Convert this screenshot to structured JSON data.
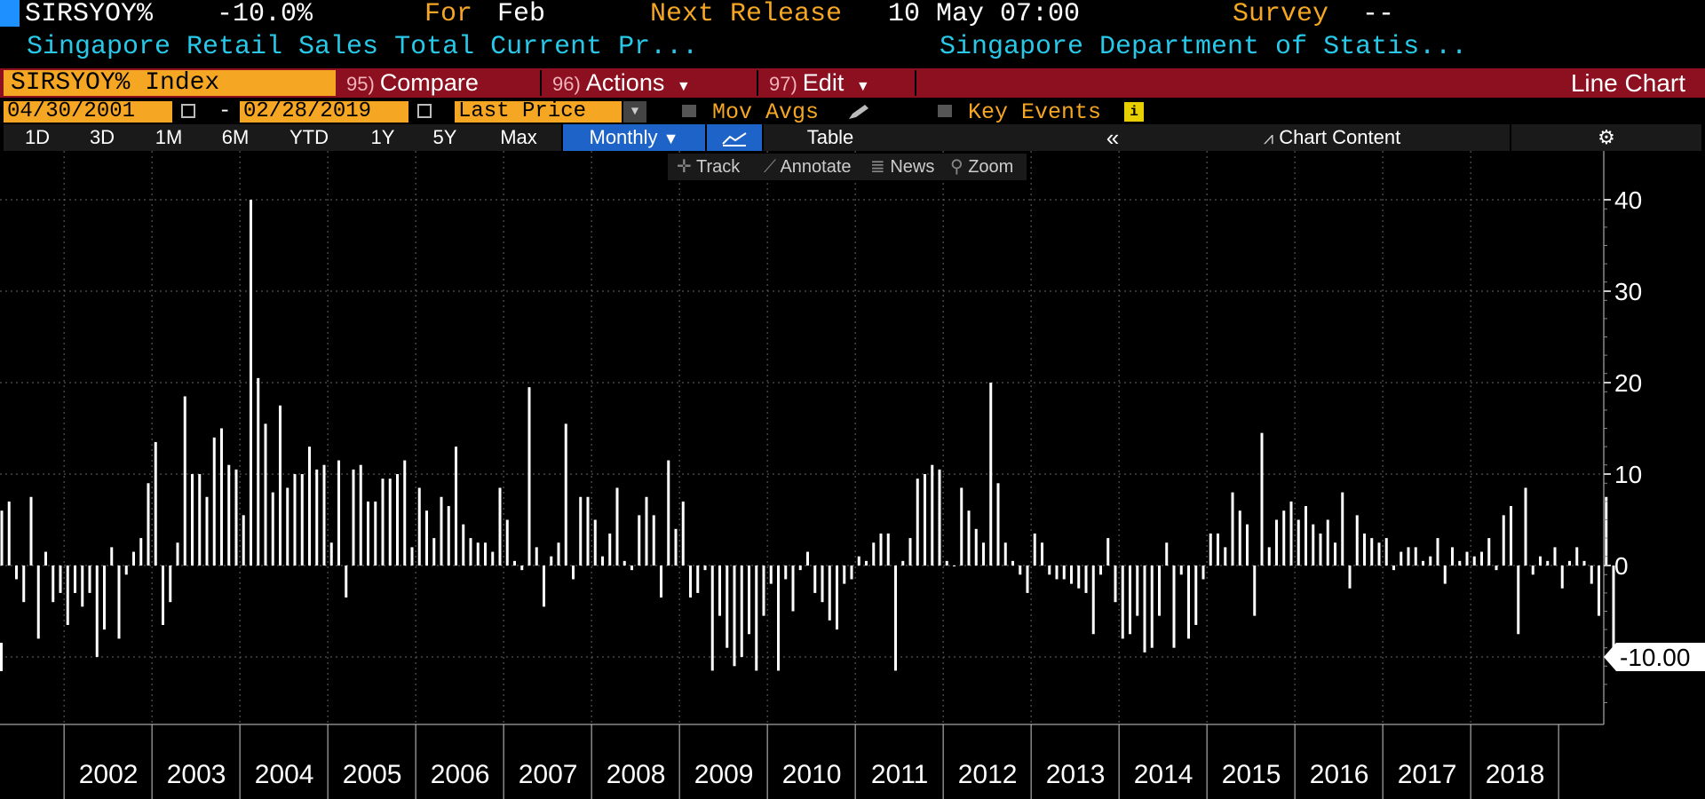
{
  "header": {
    "ticker": "SIRSYOY%",
    "last_value": "-10.0%",
    "for_label": "For",
    "for_value": "Feb",
    "next_release_label": "Next Release",
    "next_release_value": "10 May 07:00",
    "survey_label": "Survey",
    "survey_value": "--",
    "description": "Singapore Retail Sales Total Current Pr...",
    "source": "Singapore Department of Statis..."
  },
  "toolbar": {
    "security": "SIRSYOY% Index",
    "compare_num": "95)",
    "compare_label": "Compare",
    "actions_num": "96)",
    "actions_label": "Actions",
    "edit_num": "97)",
    "edit_label": "Edit",
    "chart_type": "Line Chart"
  },
  "settings": {
    "start_date": "04/30/2001",
    "date_sep": "-",
    "end_date": "02/28/2019",
    "field": "Last Price",
    "mov_avgs": "Mov Avgs",
    "key_events": "Key Events"
  },
  "ranges": {
    "items": [
      "1D",
      "3D",
      "1M",
      "6M",
      "YTD",
      "1Y",
      "5Y",
      "Max"
    ],
    "period": "Monthly",
    "table": "Table",
    "chart_content": "Chart Content"
  },
  "tools": {
    "track": "Track",
    "annotate": "Annotate",
    "news": "News",
    "zoom": "Zoom"
  },
  "colors": {
    "accent_orange": "#f5a623",
    "toolbar_red": "#8c1020",
    "text_cyan": "#27c8e8",
    "active_blue": "#1e64c8",
    "bar": "#ffffff"
  },
  "chart_data": {
    "type": "bar",
    "title": "",
    "start": "2001-04",
    "end": "2019-02",
    "frequency": "monthly",
    "ylim": [
      -17,
      45
    ],
    "yticks": [
      -10,
      0,
      10,
      20,
      30,
      40
    ],
    "x_year_labels": [
      "2002",
      "2003",
      "2004",
      "2005",
      "2006",
      "2007",
      "2008",
      "2009",
      "2010",
      "2011",
      "2012",
      "2013",
      "2014",
      "2015",
      "2016",
      "2017",
      "2018"
    ],
    "last_value_label": "-10.00",
    "grid": true,
    "values": [
      6,
      7,
      -1.5,
      -4,
      7.5,
      -8,
      1.5,
      -4,
      -3,
      -6.5,
      -3,
      -4.5,
      -3,
      -10,
      -7,
      2,
      -8,
      -1,
      1.5,
      3,
      9,
      13.5,
      -6.5,
      -4,
      2.5,
      18.5,
      10,
      10,
      7.5,
      14,
      15,
      11,
      10.5,
      5.5,
      40,
      20.5,
      15.5,
      8,
      17.5,
      8.5,
      10,
      10,
      13,
      10.5,
      11,
      2.5,
      11.5,
      -3.5,
      10.5,
      11,
      7,
      7,
      9.5,
      9.5,
      10,
      11.5,
      2,
      8.5,
      6,
      3,
      7.5,
      6.5,
      13,
      4.5,
      3,
      2.5,
      2.5,
      1.5,
      8.5,
      5,
      0.5,
      -0.5,
      19.5,
      2,
      -4.5,
      1,
      2.5,
      15.5,
      -1.5,
      7.5,
      7.5,
      5,
      1,
      3.5,
      8.5,
      0.5,
      -0.5,
      5.5,
      7.5,
      5.5,
      -3.5,
      11.5,
      4,
      7,
      -3.5,
      -3,
      -0.5,
      -11.5,
      -5.5,
      -9,
      -11,
      -10,
      -7.5,
      -11.5,
      -5.5,
      -2,
      -11.5,
      -1.5,
      -5,
      -0.5,
      1.5,
      -3,
      -4,
      -6,
      -7,
      -2,
      -1.5,
      1,
      0.5,
      2.5,
      3.5,
      3.5,
      -11.5,
      0.5,
      3,
      9.5,
      10,
      11,
      10.5,
      0.5,
      0,
      8.5,
      6,
      4,
      2.5,
      20,
      9,
      2.5,
      0.5,
      -1,
      -3,
      3.5,
      2.5,
      -1,
      -1.5,
      -1.5,
      -2,
      -2.5,
      -3,
      -7.5,
      -1,
      3,
      -4,
      -8,
      -7.5,
      -5.5,
      -9.5,
      -9,
      -5.5,
      2.5,
      -9,
      -1,
      -8,
      -6.5,
      -1.5,
      3.5,
      3.5,
      2,
      8,
      6,
      4.5,
      -5.5,
      14.5,
      2,
      5,
      6,
      7,
      5,
      6.5,
      4.5,
      3.5,
      5,
      2.5,
      8,
      -2.5,
      5.5,
      3.5,
      3,
      2.5,
      3,
      -0.5,
      1.5,
      2,
      2,
      0.5,
      1,
      3,
      -2,
      2,
      0.5,
      1.5,
      1,
      1.5,
      3,
      -0.5,
      5.5,
      6.5,
      -7.5,
      8.5,
      -1,
      1,
      0.5,
      2,
      -2.5,
      0.5,
      2,
      0.5,
      -2,
      -5.5,
      7.5,
      -10
    ]
  }
}
